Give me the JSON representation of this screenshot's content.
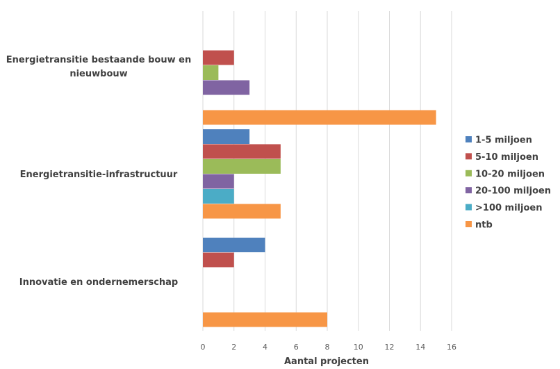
{
  "chart_data": {
    "type": "bar",
    "orientation": "horizontal",
    "categories": [
      "Energietransitie bestaande bouw en nieuwbouw",
      "Energietransitie-infrastructuur",
      "Innovatie en ondernemerschap"
    ],
    "category_lines": [
      [
        "Energietransitie bestaande bouw en",
        "nieuwbouw"
      ],
      [
        "Energietransitie-infrastructuur"
      ],
      [
        "Innovatie en ondernemerschap"
      ]
    ],
    "series": [
      {
        "name": "1-5 miljoen",
        "color": "#4F81BD",
        "values": [
          0,
          3,
          4
        ]
      },
      {
        "name": "5-10 miljoen",
        "color": "#C0504D",
        "values": [
          2,
          5,
          2
        ]
      },
      {
        "name": "10-20 miljoen",
        "color": "#9BBB59",
        "values": [
          1,
          5,
          0
        ]
      },
      {
        "name": "20-100 miljoen",
        "color": "#8064A2",
        "values": [
          3,
          2,
          0
        ]
      },
      {
        "name": ">100 miljoen",
        "color": "#4BACC6",
        "values": [
          0,
          2,
          0
        ]
      },
      {
        "name": "ntb",
        "color": "#F79646",
        "values": [
          15,
          5,
          8
        ]
      }
    ],
    "xlabel": "Aantal projecten",
    "xlim": [
      0,
      16
    ],
    "xticks": [
      0,
      2,
      4,
      6,
      8,
      10,
      12,
      14,
      16
    ],
    "grid": true,
    "legend": "right"
  }
}
